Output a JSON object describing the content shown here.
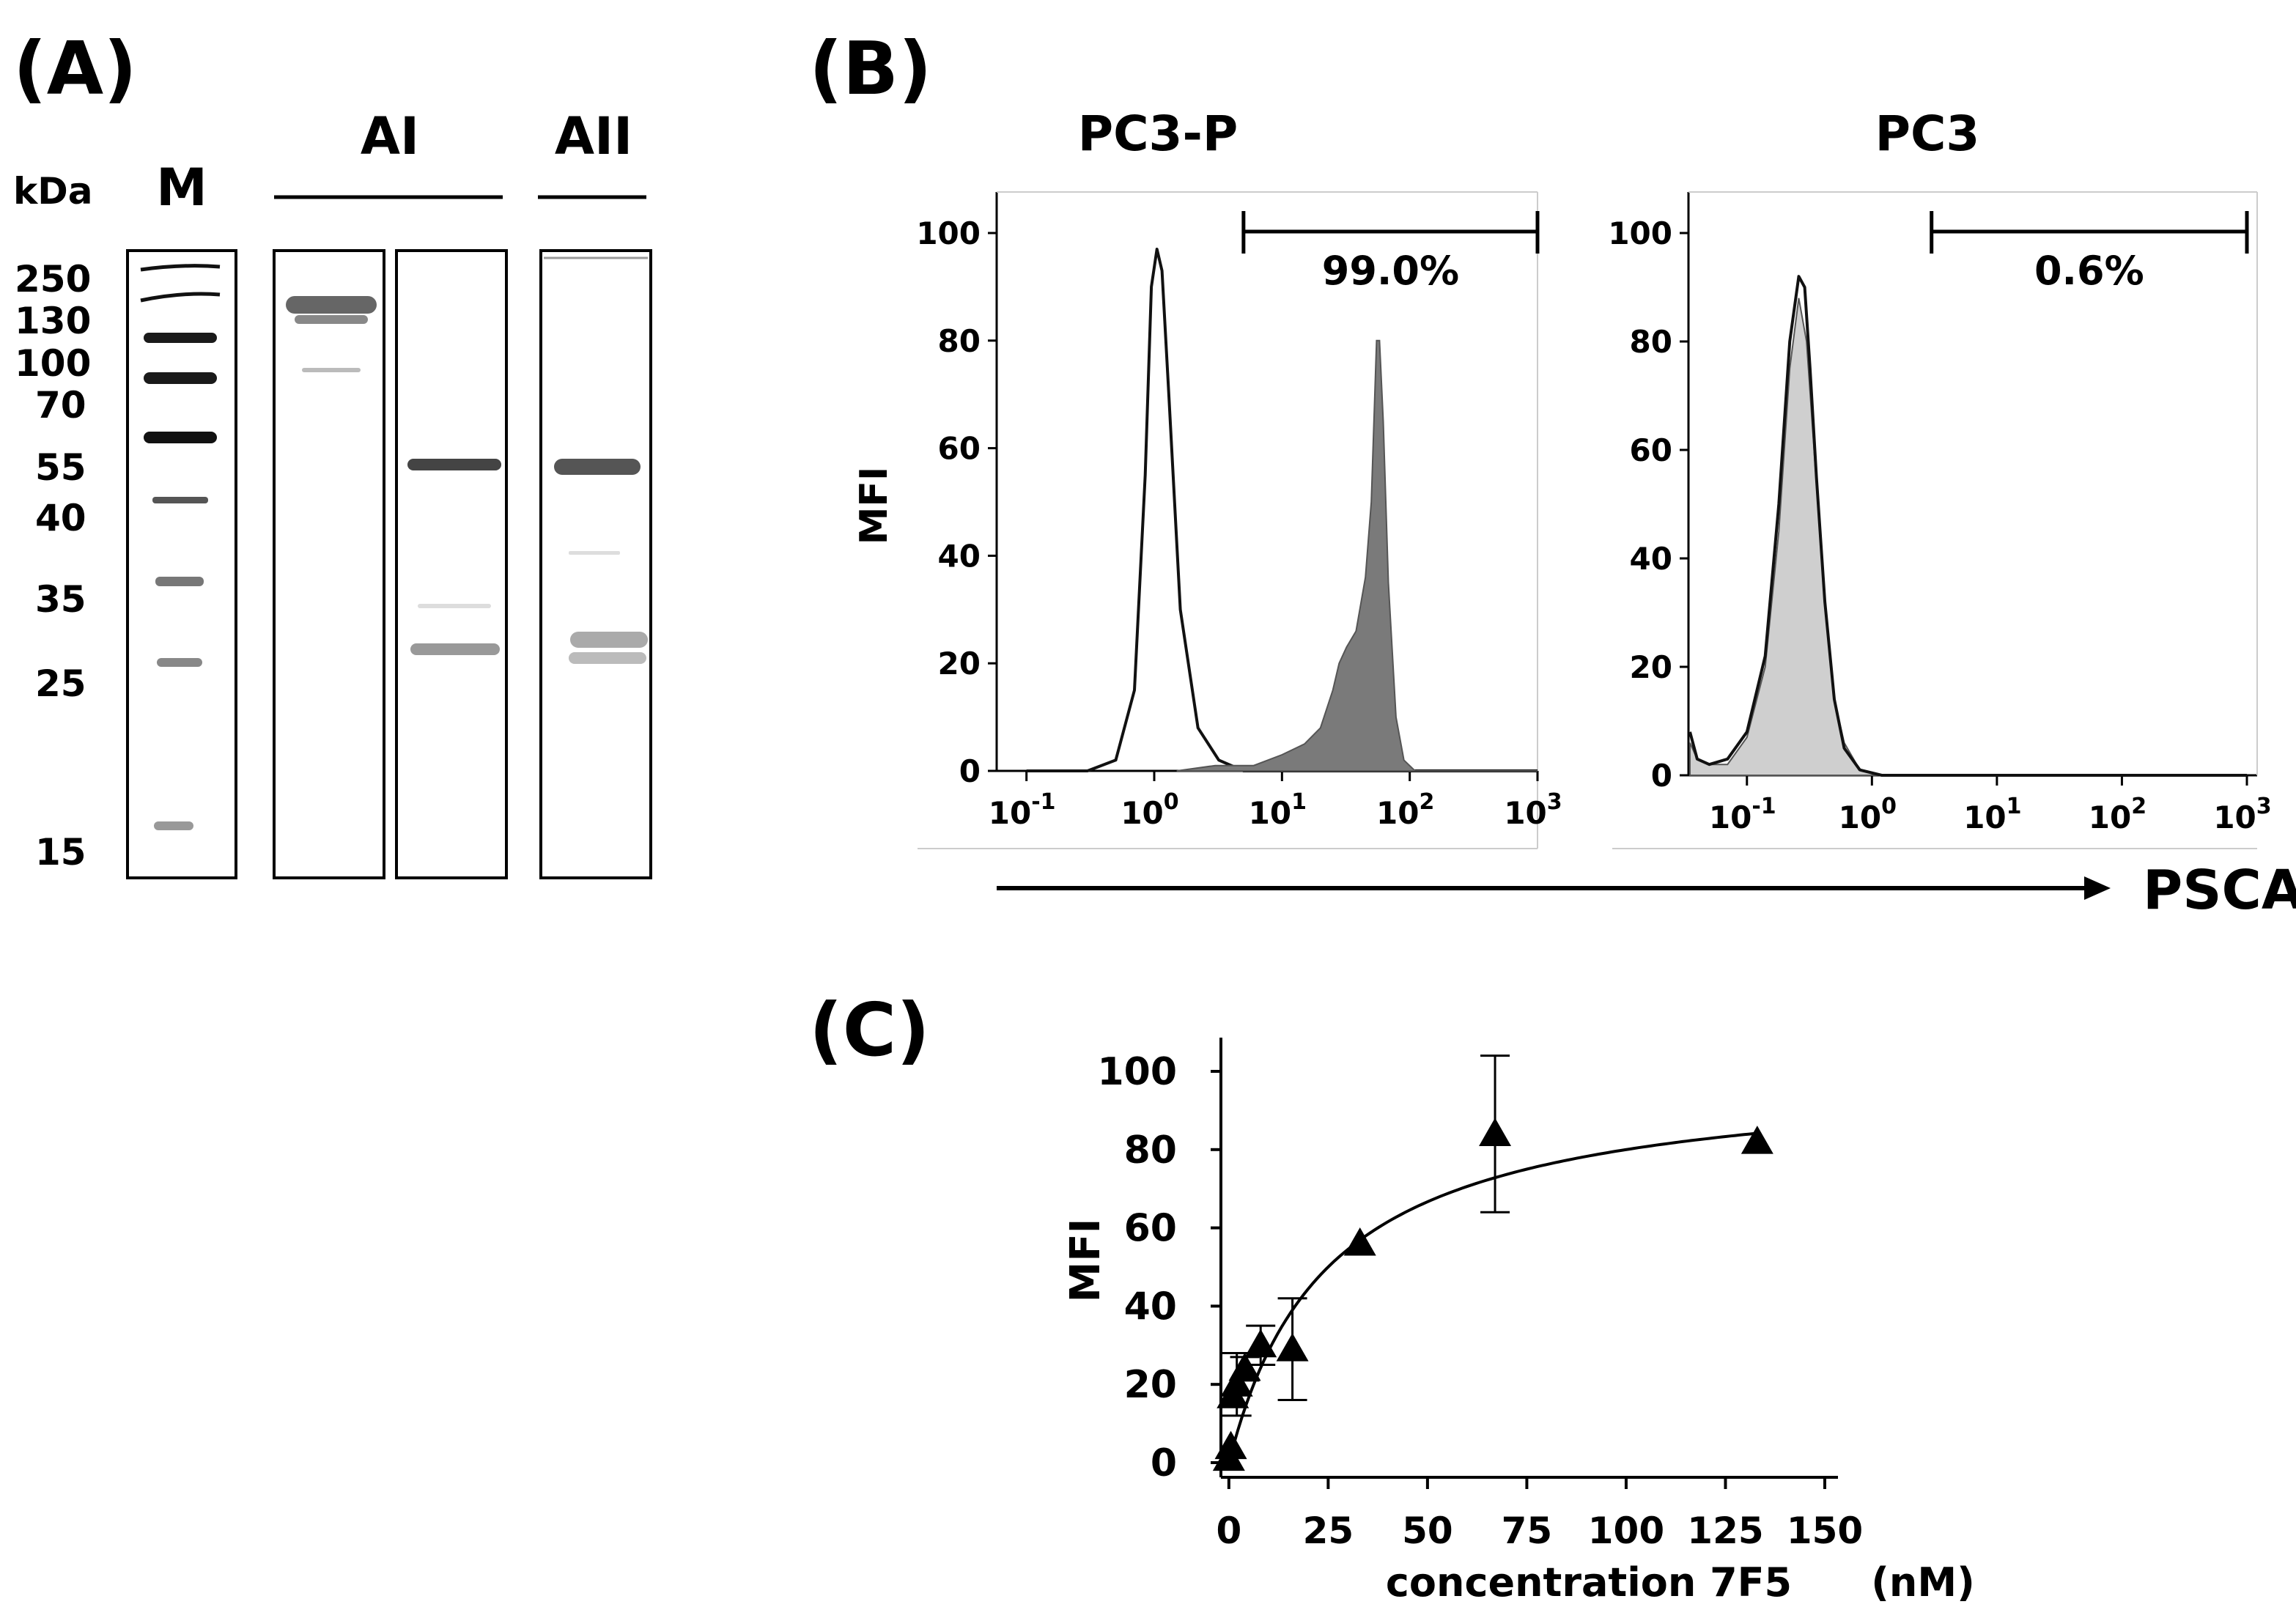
{
  "panels": {
    "a": {
      "label": "(A)",
      "unit": "kDa",
      "lane_groups": [
        {
          "label": "M"
        },
        {
          "label": "AI"
        },
        {
          "label": "AII"
        }
      ],
      "marker_kda": [
        "250",
        "130",
        "100",
        "70",
        "55",
        "40",
        "35",
        "25",
        "15"
      ]
    },
    "b": {
      "label": "(B)",
      "shared_x_label": "PSCA",
      "y_label": "MFI"
    },
    "c": {
      "label": "(C)",
      "x_unit": "(nM)"
    }
  },
  "chart_data": [
    {
      "type": "area",
      "title": "PC3-P",
      "ylabel": "MFI",
      "xlabel": "PSCA",
      "xscale": "log",
      "xlim": [
        0.06,
        1000
      ],
      "ylim": [
        0,
        100
      ],
      "y_ticks": [
        "0",
        "20",
        "40",
        "60",
        "80",
        "100"
      ],
      "x_ticks": [
        {
          "base": "10",
          "exp": "-1",
          "value": 0.1
        },
        {
          "base": "10",
          "exp": "0",
          "value": 1
        },
        {
          "base": "10",
          "exp": "1",
          "value": 10
        },
        {
          "base": "10",
          "exp": "2",
          "value": 100
        },
        {
          "base": "10",
          "exp": "3",
          "value": 1000
        }
      ],
      "gate": {
        "from": 5,
        "to": 1000,
        "percent": "99.0%"
      },
      "series": [
        {
          "style": "outline",
          "color": "#111111",
          "x": [
            0.1,
            0.3,
            0.5,
            0.7,
            0.85,
            0.95,
            1.05,
            1.15,
            1.3,
            1.6,
            2.2,
            3.2,
            5,
            10,
            1000
          ],
          "y": [
            0,
            0,
            2,
            15,
            55,
            90,
            97,
            93,
            70,
            30,
            8,
            2,
            0,
            0,
            0
          ]
        },
        {
          "style": "filled",
          "color": "#7a7a7a",
          "x": [
            1.5,
            3,
            6,
            10,
            15,
            20,
            25,
            28,
            32,
            38,
            45,
            50,
            55,
            58,
            62,
            68,
            78,
            90,
            110,
            1000
          ],
          "y": [
            0,
            1,
            1,
            3,
            5,
            8,
            15,
            20,
            23,
            26,
            36,
            50,
            80,
            80,
            65,
            35,
            10,
            2,
            0,
            0
          ]
        }
      ]
    },
    {
      "type": "area",
      "title": "PC3",
      "ylabel": "",
      "xlabel": "PSCA",
      "xscale": "log",
      "xlim": [
        0.035,
        1000
      ],
      "ylim": [
        0,
        100
      ],
      "y_ticks": [
        "0",
        "20",
        "40",
        "60",
        "80",
        "100"
      ],
      "x_ticks": [
        {
          "base": "10",
          "exp": "-1",
          "value": 0.1
        },
        {
          "base": "10",
          "exp": "0",
          "value": 1
        },
        {
          "base": "10",
          "exp": "1",
          "value": 10
        },
        {
          "base": "10",
          "exp": "2",
          "value": 100
        },
        {
          "base": "10",
          "exp": "3",
          "value": 1000
        }
      ],
      "gate": {
        "from": 3,
        "to": 1000,
        "percent": "0.6%"
      },
      "series": [
        {
          "style": "filled",
          "color": "#cfcfcf",
          "x": [
            0.035,
            0.04,
            0.05,
            0.07,
            0.1,
            0.14,
            0.18,
            0.22,
            0.26,
            0.3,
            0.34,
            0.4,
            0.5,
            0.6,
            0.8,
            1.2,
            1000
          ],
          "y": [
            6,
            3,
            2,
            2,
            7,
            20,
            45,
            75,
            88,
            80,
            62,
            38,
            14,
            6,
            1,
            0,
            0
          ]
        },
        {
          "style": "outline",
          "color": "#111111",
          "x": [
            0.035,
            0.04,
            0.05,
            0.07,
            0.1,
            0.14,
            0.18,
            0.22,
            0.26,
            0.29,
            0.32,
            0.36,
            0.42,
            0.5,
            0.6,
            0.8,
            1.2,
            1000
          ],
          "y": [
            8,
            3,
            2,
            3,
            8,
            22,
            50,
            80,
            92,
            90,
            75,
            55,
            32,
            14,
            5,
            1,
            0,
            0
          ]
        }
      ]
    },
    {
      "type": "scatter",
      "xlabel": "concentration 7F5",
      "ylabel": "MFI",
      "xlim": [
        -2,
        150
      ],
      "ylim": [
        0,
        100
      ],
      "x_ticks": [
        "0",
        "25",
        "50",
        "75",
        "100",
        "125",
        "150"
      ],
      "y_ticks": [
        "0",
        "20",
        "40",
        "60",
        "80",
        "100"
      ],
      "marker": "triangle",
      "x": [
        0,
        0.5,
        1,
        2,
        4,
        8,
        16,
        33,
        67,
        133
      ],
      "y": [
        1,
        4,
        17,
        20,
        24,
        30,
        29,
        56,
        84,
        82
      ],
      "error": [
        0,
        0,
        0,
        8,
        3,
        5,
        13,
        0,
        20,
        0
      ],
      "fit": {
        "type": "hyperbolic",
        "bmax": 100,
        "kd": 25
      }
    }
  ]
}
